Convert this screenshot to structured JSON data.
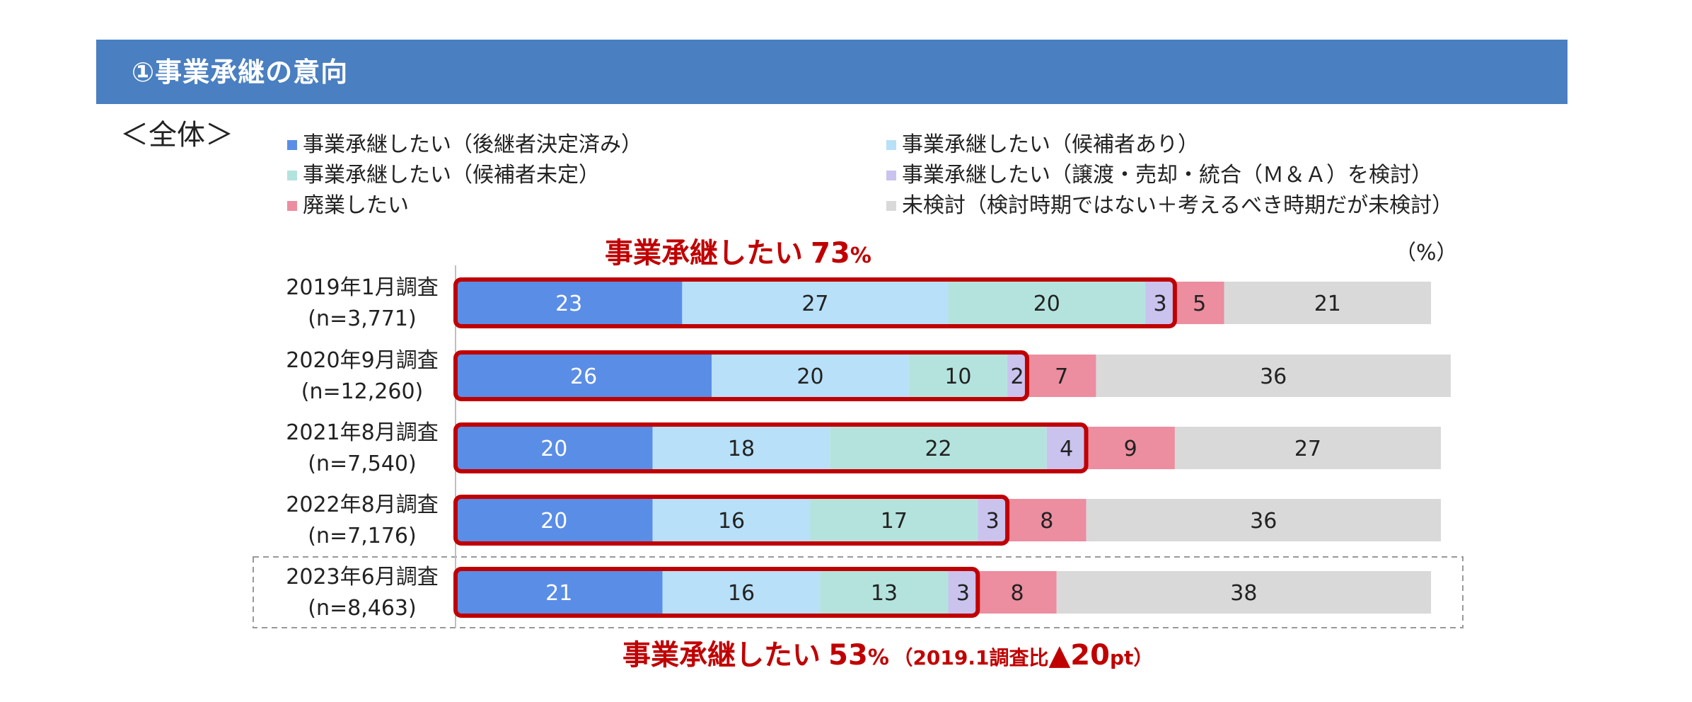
{
  "header": {
    "title": "①事業承継の意向"
  },
  "section_label": "＜全体＞",
  "unit_label": "（%）",
  "callouts": {
    "top_text": "事業承継したい",
    "top_value": "73",
    "top_pct": "%",
    "bottom_text": "事業承継したい",
    "bottom_value": "53",
    "bottom_pct": "%",
    "bottom_note_open": "（2019.1調査比",
    "bottom_note_delta": "▲20",
    "bottom_note_unit": "pt",
    "bottom_note_close": "）"
  },
  "colors": {
    "s1": "#5a8de6",
    "s2": "#b8e0f8",
    "s3": "#b4e3de",
    "s4": "#c9c3ee",
    "s5": "#ec8da0",
    "s6": "#d9d9d9",
    "outline": "#c00000",
    "header": "#4a7fc1"
  },
  "chart_data": {
    "type": "bar",
    "orientation": "horizontal",
    "stacked": true,
    "xlim": [
      0,
      100
    ],
    "unit": "%",
    "categories": [
      {
        "label": "2019年1月調査",
        "n": "(n=3,771)"
      },
      {
        "label": "2020年9月調査",
        "n": "(n=12,260)"
      },
      {
        "label": "2021年8月調査",
        "n": "(n=7,540)"
      },
      {
        "label": "2022年8月調査",
        "n": "(n=7,176)"
      },
      {
        "label": "2023年6月調査",
        "n": "(n=8,463)"
      }
    ],
    "series": [
      {
        "name": "事業承継したい（後継者決定済み）",
        "values": [
          23,
          26,
          20,
          20,
          21
        ]
      },
      {
        "name": "事業承継したい（候補者あり）",
        "values": [
          27,
          20,
          18,
          16,
          16
        ]
      },
      {
        "name": "事業承継したい（候補者未定）",
        "values": [
          20,
          10,
          22,
          17,
          13
        ]
      },
      {
        "name": "事業承継したい（譲渡・売却・統合（Ｍ＆Ａ）を検討）",
        "values": [
          3,
          2,
          4,
          3,
          3
        ]
      },
      {
        "name": "廃業したい",
        "values": [
          5,
          7,
          9,
          8,
          8
        ]
      },
      {
        "name": "未検討（検討時期ではない＋考えるべき時期だが未検討）",
        "values": [
          21,
          36,
          27,
          36,
          38
        ]
      }
    ],
    "highlighted_row": 4,
    "legend_position": "top"
  }
}
